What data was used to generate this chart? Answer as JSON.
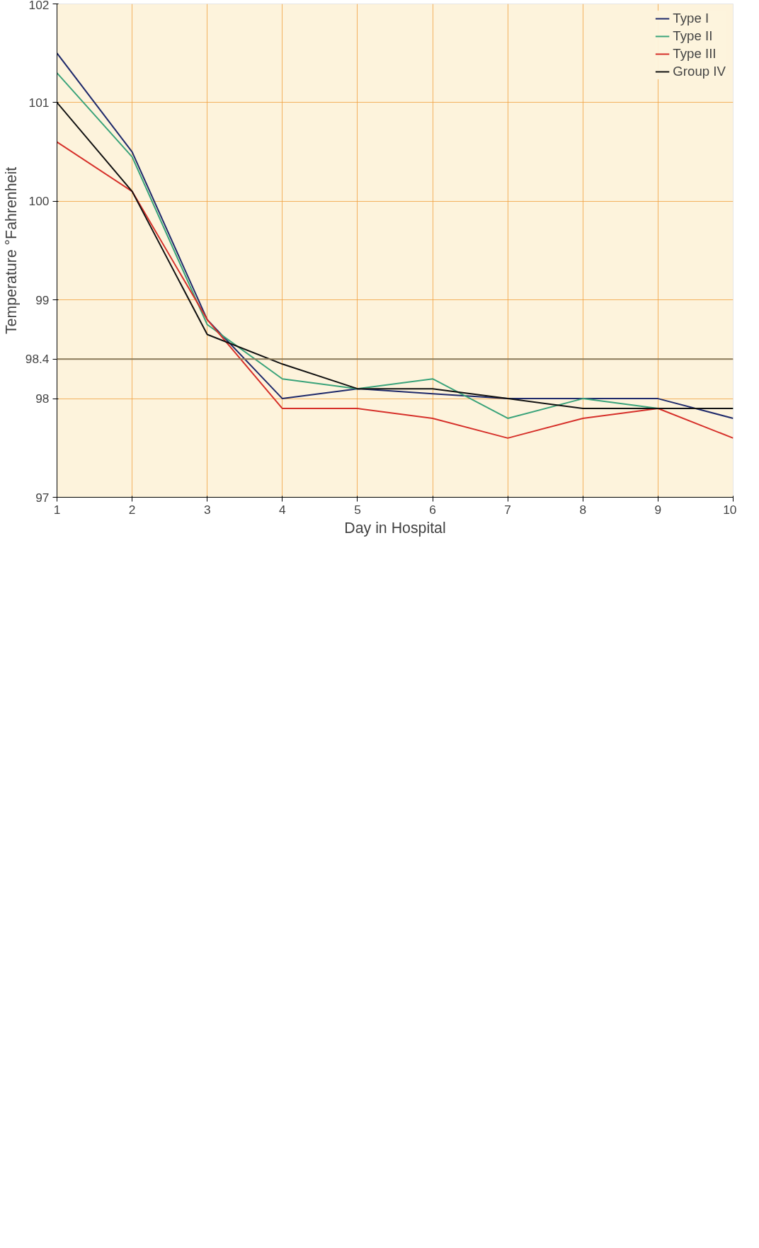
{
  "chart_data": {
    "type": "line",
    "xlabel": "Day in Hospital",
    "ylabel": "Temperature °Fahrenheit",
    "x": [
      1,
      2,
      3,
      4,
      5,
      6,
      7,
      8,
      9,
      10
    ],
    "series": [
      {
        "name": "Type I",
        "color": "#1f2a6b",
        "values": [
          101.5,
          100.5,
          98.8,
          98.0,
          98.1,
          98.05,
          98.0,
          98.0,
          98.0,
          97.8
        ]
      },
      {
        "name": "Type II",
        "color": "#3aa37a",
        "values": [
          101.3,
          100.45,
          98.75,
          98.2,
          98.1,
          98.2,
          97.8,
          98.0,
          97.9,
          97.9
        ]
      },
      {
        "name": "Type III",
        "color": "#d6302a",
        "values": [
          100.6,
          100.1,
          98.8,
          97.9,
          97.9,
          97.8,
          97.6,
          97.8,
          97.9,
          97.6
        ]
      },
      {
        "name": "Group IV",
        "color": "#111111",
        "values": [
          101.0,
          100.1,
          98.65,
          98.35,
          98.1,
          98.1,
          98.0,
          97.9,
          97.9,
          97.9
        ]
      }
    ],
    "xlim": [
      1,
      10
    ],
    "xticks": [
      1,
      2,
      3,
      4,
      5,
      6,
      7,
      8,
      9,
      10
    ],
    "ylim": [
      97,
      102
    ],
    "yticks": [
      97,
      98,
      98.4,
      99,
      100,
      101,
      102
    ],
    "ref_lines": [
      {
        "axis": "y",
        "value": 98.4,
        "color": "#8a7a5a"
      }
    ],
    "grid": true,
    "legend": "top right",
    "marker": "none",
    "line_style": "solid"
  }
}
